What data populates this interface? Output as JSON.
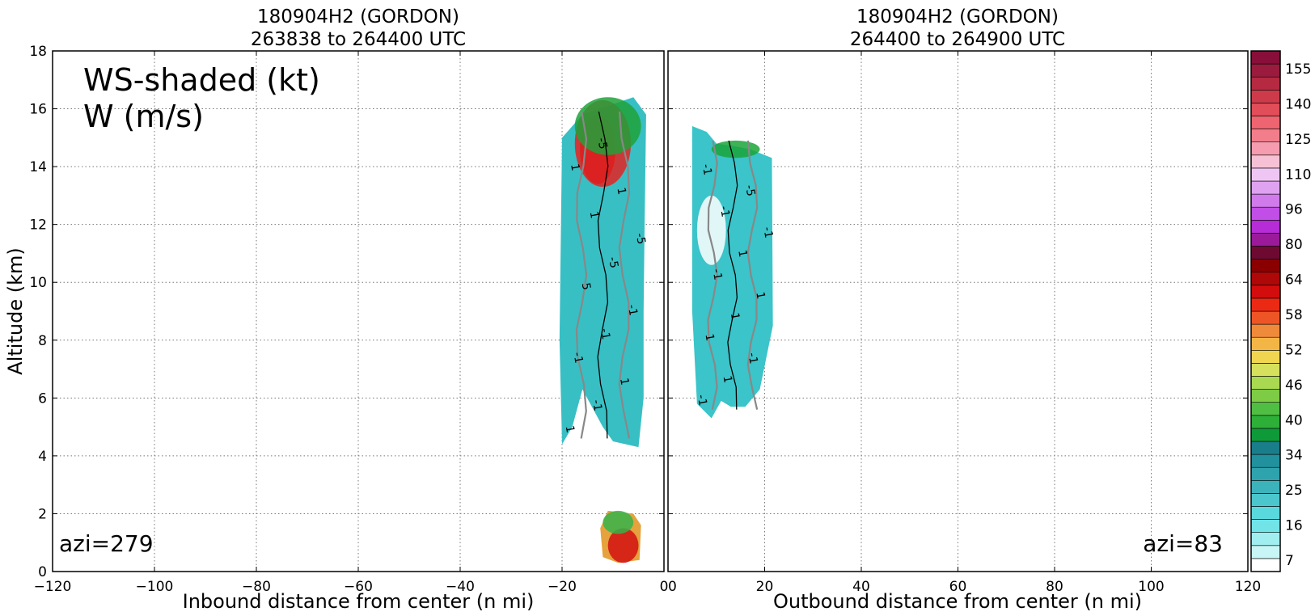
{
  "chart_data": [
    {
      "type": "heatmap",
      "title_line1": "180904H2 (GORDON)",
      "title_line2": "263838 to 264400 UTC",
      "xlabel": "Inbound distance from center (n mi)",
      "ylabel": "Altitude (km)",
      "xlim": [
        -120,
        0
      ],
      "ylim": [
        0,
        18
      ],
      "xticks": [
        "−120",
        "−100",
        "−80",
        "−60",
        "−40",
        "−20",
        "0"
      ],
      "yticks": [
        "0",
        "2",
        "4",
        "6",
        "8",
        "10",
        "12",
        "14",
        "16",
        "18"
      ],
      "grid": true,
      "annotation_main": "WS-shaded (kt)",
      "annotation_sub": "W (m/s)",
      "azi_label": "azi=279",
      "shaded_regions": [
        {
          "name": "upper-band",
          "color": "#38bfc4",
          "polygon": [
            [
              -20,
              4.4
            ],
            [
              -18,
              5.0
            ],
            [
              -16,
              6.3
            ],
            [
              -12,
              5.0
            ],
            [
              -10,
              4.5
            ],
            [
              -5,
              4.3
            ],
            [
              -4,
              6
            ],
            [
              -4,
              9
            ],
            [
              -3.8,
              12
            ],
            [
              -3.5,
              15.8
            ],
            [
              -6,
              16.4
            ],
            [
              -11,
              16.1
            ],
            [
              -16,
              15.8
            ],
            [
              -20,
              15.0
            ],
            [
              -20.5,
              8
            ]
          ]
        },
        {
          "name": "lower-blob",
          "color": "#e6a23c",
          "polygon": [
            [
              -12,
              0.5
            ],
            [
              -12.5,
              1.5
            ],
            [
              -11,
              2.1
            ],
            [
              -6,
              2.0
            ],
            [
              -4.5,
              1.6
            ],
            [
              -4.8,
              0.4
            ],
            [
              -9,
              0.3
            ]
          ]
        }
      ],
      "colored_features": [
        {
          "name": "max-core",
          "color": "#b50000",
          "center": [
            -13,
            14.6
          ],
          "r": [
            3.5,
            1.2
          ]
        },
        {
          "name": "red-ring",
          "color": "#e52222",
          "center": [
            -12,
            14.8
          ],
          "r": [
            5.5,
            1.5
          ]
        },
        {
          "name": "green-rim",
          "color": "#1fa23a",
          "center": [
            -11,
            15.4
          ],
          "r": [
            6.5,
            1.0
          ]
        },
        {
          "name": "low-red",
          "color": "#d11010",
          "center": [
            -8,
            0.9
          ],
          "r": [
            3,
            0.6
          ]
        },
        {
          "name": "low-green",
          "color": "#34b44a",
          "center": [
            -9,
            1.7
          ],
          "r": [
            3,
            0.4
          ]
        }
      ],
      "contour_labels": [
        "1",
        "-1",
        "1",
        "-1",
        "-1",
        "-1",
        "5",
        "-5",
        "-5",
        "1",
        "1",
        "1",
        "-5"
      ]
    },
    {
      "type": "heatmap",
      "title_line1": "180904H2 (GORDON)",
      "title_line2": "264400 to 264900 UTC",
      "xlabel": "Outbound distance from center (n mi)",
      "ylabel": "",
      "xlim": [
        0,
        120
      ],
      "ylim": [
        0,
        18
      ],
      "xticks": [
        "0",
        "20",
        "40",
        "60",
        "80",
        "100",
        "120"
      ],
      "grid": true,
      "azi_label": "azi=83",
      "shaded_regions": [
        {
          "name": "band",
          "color": "#3bc4c9",
          "polygon": [
            [
              5,
              15.4
            ],
            [
              8,
              15.2
            ],
            [
              10,
              14.8
            ],
            [
              14,
              14.7
            ],
            [
              17,
              14.6
            ],
            [
              21.5,
              14.3
            ],
            [
              21.7,
              8.5
            ],
            [
              19,
              6.3
            ],
            [
              16,
              5.7
            ],
            [
              13,
              5.7
            ],
            [
              11,
              5.9
            ],
            [
              9,
              5.3
            ],
            [
              6,
              5.8
            ],
            [
              5,
              9
            ]
          ]
        }
      ],
      "colored_features": [
        {
          "name": "green-top",
          "color": "#1ba43a",
          "center": [
            14,
            14.6
          ],
          "r": [
            5,
            0.3
          ]
        },
        {
          "name": "white-gap",
          "color": "#ffffff",
          "center": [
            9,
            11.8
          ],
          "r": [
            3,
            1.2
          ]
        }
      ],
      "contour_labels": [
        "-1",
        "1",
        "-1",
        "1",
        "1",
        "1",
        "-1",
        "1",
        "-1",
        "-1",
        "-5",
        "-1"
      ]
    }
  ],
  "colorbar": {
    "tick_labels": [
      "7",
      "16",
      "25",
      "34",
      "40",
      "46",
      "52",
      "58",
      "64",
      "80",
      "96",
      "110",
      "125",
      "140",
      "155"
    ],
    "colors": [
      "#ffffff",
      "#c8f6f6",
      "#a0eef0",
      "#72e4e8",
      "#59d8dd",
      "#4bc6cc",
      "#3cb3bb",
      "#2fa3ad",
      "#21919d",
      "#1a7e8a",
      "#0f9a3a",
      "#2daf38",
      "#4fbe43",
      "#7ecb46",
      "#a9d950",
      "#d5e15c",
      "#f0d650",
      "#f3b646",
      "#f08a3b",
      "#ee5526",
      "#ec2a14",
      "#d30d0d",
      "#ae0808",
      "#8a0000",
      "#6e0a32",
      "#9a1a9a",
      "#b62cd6",
      "#c14ee6",
      "#d07aec",
      "#dea2f0",
      "#efc6f3",
      "#f6c1d4",
      "#f59cb0",
      "#f27e8c",
      "#ee6470",
      "#e14d58",
      "#cd3b4b",
      "#b52a41",
      "#9a1b3d",
      "#880f39"
    ]
  }
}
